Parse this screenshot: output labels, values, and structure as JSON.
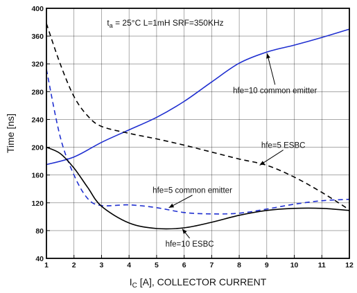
{
  "chart_data": {
    "type": "line",
    "title": "",
    "xlabel": {
      "prefix": "I",
      "sub": "C",
      "suffix": " [A], COLLECTOR CURRENT"
    },
    "ylabel": "Time [ns]",
    "xlim": [
      1,
      12
    ],
    "ylim": [
      40,
      400
    ],
    "x_ticks": [
      1,
      2,
      3,
      4,
      5,
      6,
      7,
      8,
      9,
      10,
      11,
      12
    ],
    "y_ticks": [
      40,
      80,
      120,
      160,
      200,
      240,
      280,
      320,
      360,
      400
    ],
    "grid": true,
    "conditions": {
      "t": "t",
      "t_sub": "a",
      "text": " = 25°C L=1mH SRF=350KHz"
    },
    "series": [
      {
        "name": "hfe=10 common emitter",
        "color": "#1f2fd0",
        "dash": "solid",
        "x": [
          1,
          2,
          3,
          4,
          5,
          6,
          7,
          8,
          9,
          10,
          11,
          12
        ],
        "y": [
          175,
          186,
          207,
          225,
          243,
          266,
          294,
          321,
          337,
          347,
          358,
          370
        ]
      },
      {
        "name": "hfe=5 ESBC",
        "color": "#000000",
        "dash": "dashed",
        "x": [
          1,
          1.5,
          2,
          2.5,
          3,
          4,
          5,
          6,
          7,
          8,
          9,
          10,
          11,
          12
        ],
        "y": [
          378,
          320,
          273,
          245,
          230,
          220,
          212,
          203,
          193,
          183,
          174,
          157,
          135,
          110
        ]
      },
      {
        "name": "hfe=5 common emitter",
        "color": "#1f2fd0",
        "dash": "dashed",
        "x": [
          1,
          1.5,
          2,
          2.5,
          3,
          4,
          5,
          6,
          7,
          8,
          9,
          10,
          11,
          12
        ],
        "y": [
          312,
          215,
          160,
          126,
          116,
          117,
          113,
          106,
          104,
          105,
          111,
          118,
          123,
          125
        ]
      },
      {
        "name": "hfe=10 ESBC",
        "color": "#000000",
        "dash": "solid",
        "x": [
          1,
          1.5,
          2,
          2.5,
          3,
          4,
          5,
          6,
          7,
          8,
          9,
          10,
          11,
          12
        ],
        "y": [
          200,
          191,
          170,
          142,
          115,
          91,
          83,
          84,
          92,
          102,
          109,
          112,
          112,
          109
        ]
      }
    ],
    "annotations": [
      {
        "text": "hfe=10 common emitter",
        "series": 0,
        "point_x": 9.0,
        "point_y": 337,
        "label_x": 9.3,
        "label_y": 290
      },
      {
        "text": "hfe=5 ESBC",
        "series": 1,
        "point_x": 8.7,
        "point_y": 173,
        "label_x": 9.6,
        "label_y": 196
      },
      {
        "text": "hfe=5 common emitter",
        "series": 2,
        "point_x": 5.4,
        "point_y": 112,
        "label_x": 6.3,
        "label_y": 131
      },
      {
        "text": "hfe=10 ESBC",
        "series": 3,
        "point_x": 5.9,
        "point_y": 84,
        "label_x": 6.2,
        "label_y": 69
      }
    ]
  }
}
